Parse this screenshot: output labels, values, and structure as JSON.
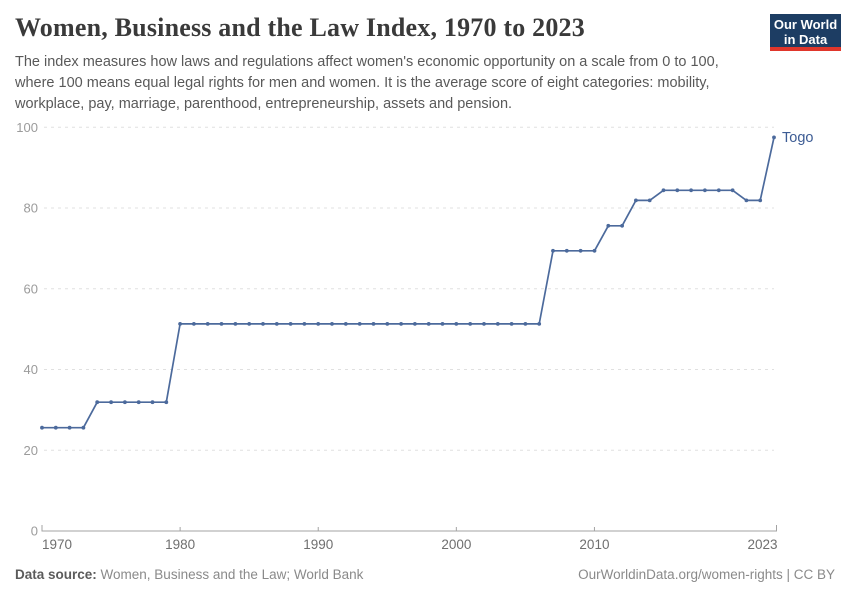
{
  "header": {
    "title": "Women, Business and the Law Index, 1970 to 2023",
    "subtitle_lines": [
      "The index measures how laws and regulations affect women's economic opportunity on a scale from 0 to 100,",
      "where 100 means equal legal rights for men and women. It is the average score of eight categories: mobility,",
      "workplace, pay, marriage, parenthood, entrepreneurship, assets and pension."
    ],
    "logo": {
      "line1": "Our World",
      "line2": "in Data"
    }
  },
  "chart_data": {
    "type": "line",
    "title": "Women, Business and the Law Index, 1970 to 2023",
    "xlabel": "",
    "ylabel": "",
    "xlim": [
      1970,
      2023
    ],
    "ylim": [
      0,
      100
    ],
    "x_ticks": [
      1970,
      1980,
      1990,
      2000,
      2010,
      2023
    ],
    "y_ticks": [
      0,
      20,
      40,
      60,
      80,
      100
    ],
    "grid": "horizontal-dashed",
    "legend_position": "line-end-label",
    "start_year": 1970,
    "series": [
      {
        "name": "Togo",
        "values": [
          25.6,
          25.6,
          25.6,
          25.6,
          31.9,
          31.9,
          31.9,
          31.9,
          31.9,
          31.9,
          51.3,
          51.3,
          51.3,
          51.3,
          51.3,
          51.3,
          51.3,
          51.3,
          51.3,
          51.3,
          51.3,
          51.3,
          51.3,
          51.3,
          51.3,
          51.3,
          51.3,
          51.3,
          51.3,
          51.3,
          51.3,
          51.3,
          51.3,
          51.3,
          51.3,
          51.3,
          51.3,
          69.4,
          69.4,
          69.4,
          69.4,
          75.6,
          75.6,
          81.9,
          81.9,
          84.4,
          84.4,
          84.4,
          84.4,
          84.4,
          84.4,
          81.9,
          81.9,
          97.5
        ]
      }
    ]
  },
  "colors": {
    "line": "#4c6a9c",
    "entity_label": "#3d5c94",
    "grid": "#e0e0e0",
    "axis": "#a3a3a3",
    "y_tick_label": "#9b9b9b",
    "x_tick_label": "#6f6f6f",
    "logo_bg": "#1d3d63",
    "logo_stripe": "#e0362b"
  },
  "footer": {
    "source_label": "Data source:",
    "source_text": " Women, Business and the Law; World Bank",
    "credit": "OurWorldinData.org/women-rights | CC BY"
  }
}
